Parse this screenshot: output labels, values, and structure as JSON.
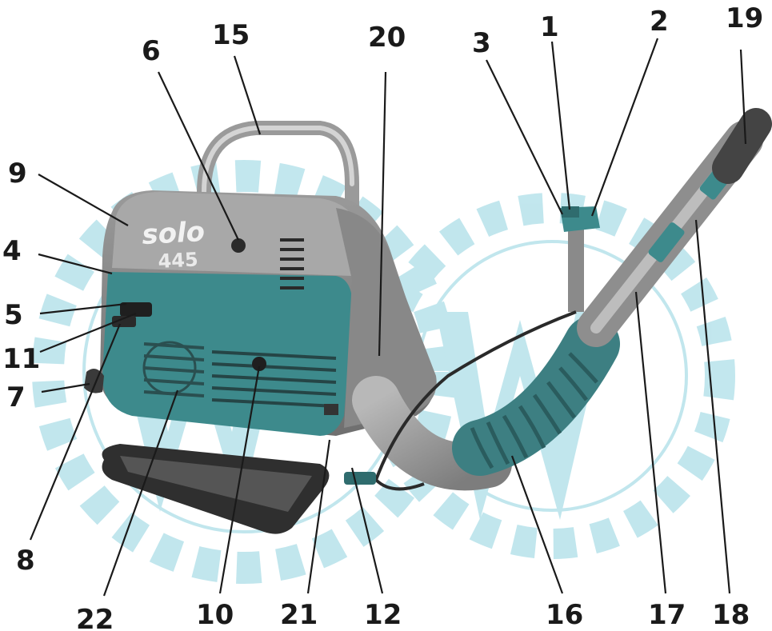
{
  "machine": {
    "brand": "solo",
    "model": "445"
  },
  "callouts": [
    {
      "id": "1",
      "label": "1"
    },
    {
      "id": "2",
      "label": "2"
    },
    {
      "id": "3",
      "label": "3"
    },
    {
      "id": "4",
      "label": "4"
    },
    {
      "id": "5",
      "label": "5"
    },
    {
      "id": "6",
      "label": "6"
    },
    {
      "id": "7",
      "label": "7"
    },
    {
      "id": "8",
      "label": "8"
    },
    {
      "id": "9",
      "label": "9"
    },
    {
      "id": "10",
      "label": "10"
    },
    {
      "id": "11",
      "label": "11"
    },
    {
      "id": "12",
      "label": "12"
    },
    {
      "id": "15",
      "label": "15"
    },
    {
      "id": "16",
      "label": "16"
    },
    {
      "id": "17",
      "label": "17"
    },
    {
      "id": "18",
      "label": "18"
    },
    {
      "id": "19",
      "label": "19"
    },
    {
      "id": "20",
      "label": "20"
    },
    {
      "id": "21",
      "label": "21"
    },
    {
      "id": "22",
      "label": "22"
    }
  ],
  "colors": {
    "watermark": "#8fd3e0",
    "teal_body": "#3d8a8c",
    "grey_body": "#8c8c8c",
    "dark": "#2a2a2a",
    "text": "#1a1a1a"
  }
}
